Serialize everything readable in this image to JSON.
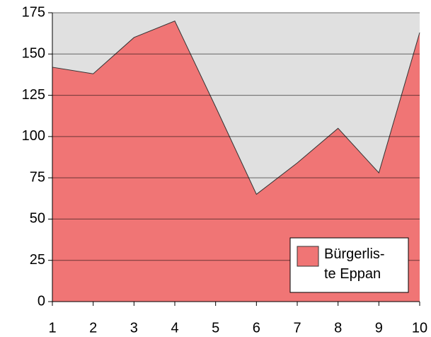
{
  "chart_data": {
    "type": "area",
    "x": [
      1,
      2,
      3,
      4,
      5,
      6,
      7,
      8,
      9,
      10
    ],
    "series": [
      {
        "name": "Bürgerlis-\nte Eppan",
        "color": "#f07575",
        "values": [
          142,
          138,
          160,
          170,
          118,
          65,
          84,
          105,
          78,
          163
        ]
      }
    ],
    "xlim": [
      1,
      10
    ],
    "xticks": [
      1,
      2,
      3,
      4,
      5,
      6,
      7,
      8,
      9,
      10
    ],
    "ylim": [
      0,
      175
    ],
    "yticks": [
      0,
      25,
      50,
      75,
      100,
      125,
      150,
      175
    ],
    "grid": true,
    "legend": "lower right"
  }
}
